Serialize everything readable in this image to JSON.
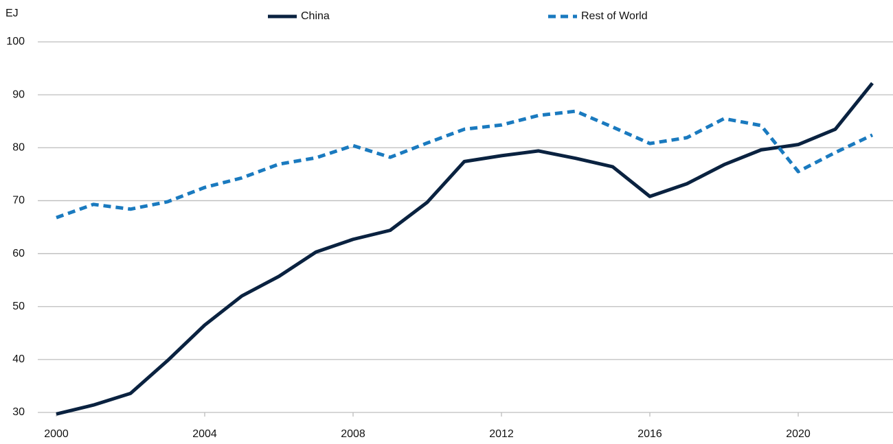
{
  "chart_data": {
    "type": "line",
    "y_label": "EJ",
    "x": [
      2000,
      2001,
      2002,
      2003,
      2004,
      2005,
      2006,
      2007,
      2008,
      2009,
      2010,
      2011,
      2012,
      2013,
      2014,
      2015,
      2016,
      2017,
      2018,
      2019,
      2020,
      2021,
      2022
    ],
    "series": [
      {
        "name": "China",
        "color": "#0a2240",
        "style": "solid",
        "values": [
          29.7,
          31.4,
          33.6,
          39.8,
          46.5,
          52.0,
          55.7,
          60.3,
          62.7,
          64.4,
          69.7,
          77.4,
          78.5,
          79.4,
          78.0,
          76.4,
          70.8,
          73.2,
          76.8,
          79.6,
          80.6,
          83.5,
          92.2
        ]
      },
      {
        "name": "Rest of World",
        "color": "#1a7abf",
        "style": "dashed",
        "values": [
          66.8,
          69.3,
          68.4,
          69.8,
          72.5,
          74.3,
          76.9,
          78.1,
          80.4,
          78.2,
          80.9,
          83.5,
          84.3,
          86.1,
          86.9,
          83.9,
          80.8,
          81.9,
          85.5,
          84.2,
          75.5,
          79.1,
          82.4
        ]
      }
    ],
    "xlim": [
      2000,
      2022
    ],
    "xticks": [
      2000,
      2004,
      2008,
      2012,
      2016,
      2020
    ],
    "ylim": [
      30,
      100
    ],
    "yticks": [
      30,
      40,
      50,
      60,
      70,
      80,
      90,
      100
    ],
    "grid": true,
    "legend": "top"
  }
}
